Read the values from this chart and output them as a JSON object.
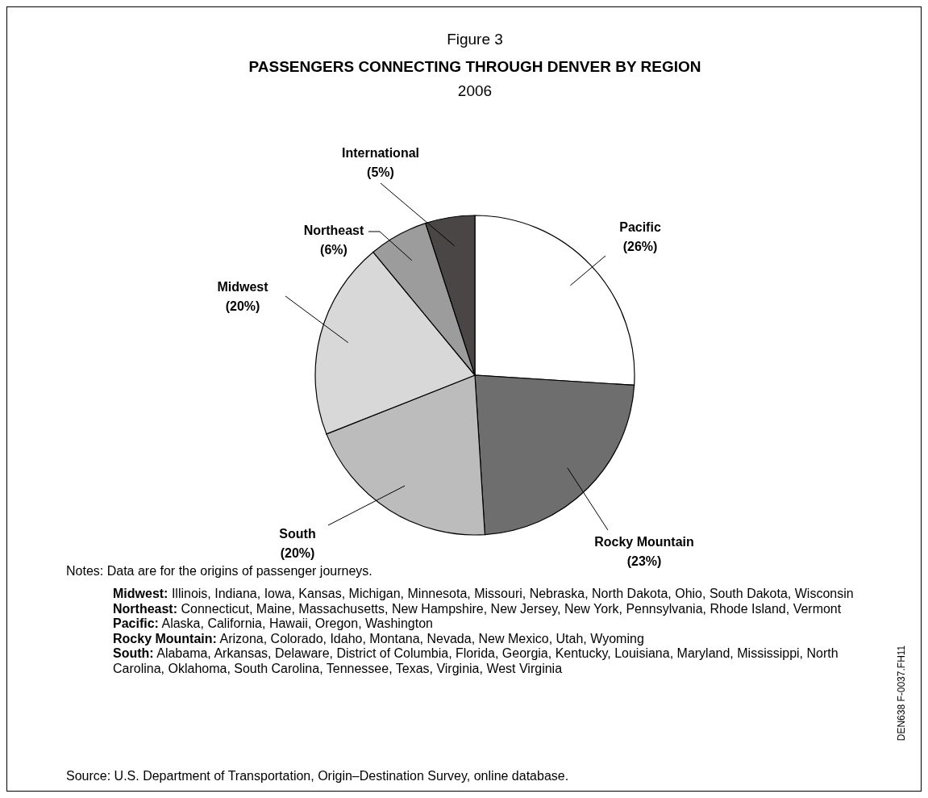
{
  "chart_data": {
    "type": "pie",
    "title": "PASSENGERS CONNECTING THROUGH DENVER BY REGION",
    "subtitle": "2006",
    "categories": [
      "Pacific",
      "Rocky Mountain",
      "South",
      "Midwest",
      "Northeast",
      "International"
    ],
    "values": [
      26,
      23,
      20,
      20,
      6,
      5
    ],
    "value_labels": [
      "(26%)",
      "(23%)",
      "(20%)",
      "(20%)",
      "(6%)",
      "(5%)"
    ],
    "colors": [
      "#ffffff",
      "#6e6e6e",
      "#bcbcbc",
      "#d8d8d8",
      "#9c9c9c",
      "#4a4646"
    ],
    "annotations": [
      "Figure 3",
      "Notes: Data are for the origins of passenger journeys.",
      "Midwest: Illinois, Indiana, Iowa, Kansas, Michigan, Minnesota, Missouri, Nebraska, North Dakota, Ohio, South Dakota, Wisconsin",
      "Northeast: Connecticut, Maine, Massachusetts, New Hampshire, New Jersey, New York, Pennsylvania, Rhode Island, Vermont",
      "Pacific: Alaska, California, Hawaii, Oregon, Washington",
      "Rocky Mountain: Arizona, Colorado, Idaho, Montana, Nevada, New Mexico, Utah, Wyoming",
      "South: Alabama, Arkansas, Delaware, District of Columbia, Florida, Georgia, Kentucky, Louisiana, Maryland, Mississippi, North Carolina, Oklahoma, South Carolina, Tennessee, Texas, Virginia, West Virginia",
      "Source: U.S. Department of Transportation, Origin–Destination Survey, online database.",
      "DEN638 F-0037.FH11"
    ]
  }
}
